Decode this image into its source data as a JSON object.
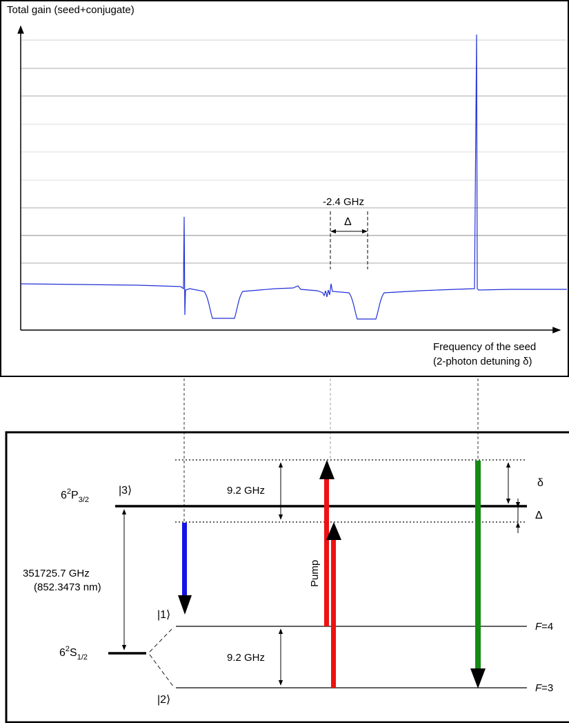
{
  "spectrum": {
    "y_label": "Total gain (seed+conjugate)",
    "x_label_line1": "Frequency of the seed",
    "x_label_line2": "(2-photon detuning δ)",
    "detuning_value": "-2.4 GHz",
    "delta_symbol": "Δ",
    "trace_color": "#1f2fd6"
  },
  "levels": {
    "excited": {
      "state": "|3⟩",
      "term_base": "6",
      "term_sup": "2",
      "term_letter": "P",
      "term_sub": "3/2"
    },
    "ground": {
      "term_base": "6",
      "term_sup": "2",
      "term_letter": "S",
      "term_sub": "1/2"
    },
    "state1": "|1⟩",
    "state2": "|2⟩",
    "f4_letter": "F",
    "f4_value": "=4",
    "f3_letter": "F",
    "f3_value": "=3",
    "hyperfine_top": "9.2 GHz",
    "hyperfine_bottom": "9.2 GHz",
    "optical_freq": "351725.7 GHz",
    "optical_wavelength": "(852.3473 nm)",
    "pump_label": "Pump",
    "delta_small": "δ",
    "Delta_big": "Δ",
    "colors": {
      "seed": "#1414e6",
      "pump": "#ee1111",
      "conjugate": "#138a13"
    }
  }
}
